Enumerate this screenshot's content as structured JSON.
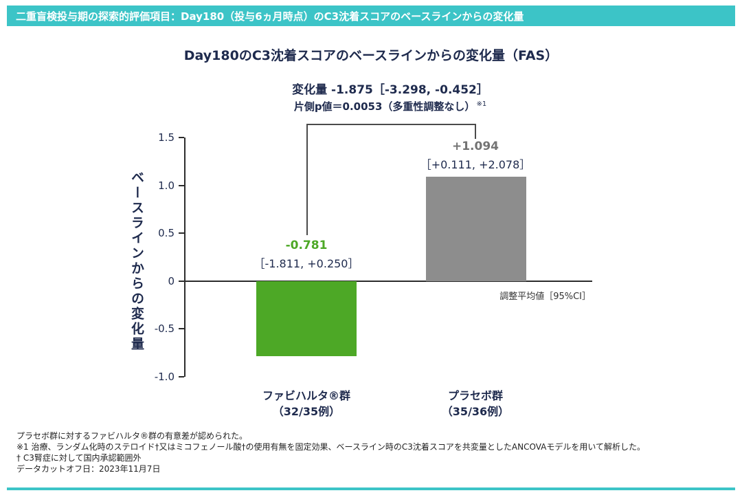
{
  "header": {
    "title": "二重盲検投与期の探索的評価項目：Day180（投与6ヵ月時点）のC3沈着スコアのベースラインからの変化量"
  },
  "chart": {
    "title": "Day180のC3沈着スコアのベースラインからの変化量（FAS）",
    "comparison_line1": "変化量 -1.875［-3.298, -0.452］",
    "comparison_line2": "片側p値＝0.0053（多重性調整なし）",
    "comparison_note_ref": "※1",
    "y_axis_label": "ベースラインからの変化量",
    "axis_note": "調整平均値［95%CI］"
  },
  "groups": [
    {
      "name": "ファビハルタ®群",
      "n_label": "（32/35例）",
      "value_label": "-0.781",
      "ci_label": "［-1.811, +0.250］"
    },
    {
      "name": "プラセボ群",
      "n_label": "（35/36例）",
      "value_label": "+1.094",
      "ci_label": "［+0.111, +2.078］"
    }
  ],
  "chart_data": {
    "type": "bar",
    "title": "Day180のC3沈着スコアのベースラインからの変化量（FAS）",
    "xlabel": "",
    "ylabel": "ベースラインからの変化量",
    "ylim": [
      -1.0,
      1.5
    ],
    "yticks": [
      1.5,
      1.0,
      0.5,
      0,
      -0.5,
      -1.0
    ],
    "grid": false,
    "legend": false,
    "categories": [
      "ファビハルタ®群（32/35例）",
      "プラセボ群（35/36例）"
    ],
    "values": [
      -0.781,
      1.094
    ],
    "ci95": [
      [
        -1.811,
        0.25
      ],
      [
        0.111,
        2.078
      ]
    ],
    "bar_colors": [
      "#4DA826",
      "#8D8D8D"
    ],
    "measure": "調整平均値［95%CI］",
    "comparison": {
      "label": "変化量",
      "difference": -1.875,
      "ci95": [
        -3.298,
        -0.452
      ],
      "p_value_one_sided": 0.0053,
      "p_note": "多重性調整なし"
    }
  },
  "footnotes": [
    "プラセボ群に対するファビハルタ®群の有意差が認められた。",
    "※1 治療、ランダム化時のステロイド†又はミコフェノール酸†の使用有無を固定効果、ベースライン時のC3沈着スコアを共変量としたANCOVAモデルを用いて解析した。",
    "† C3腎症に対して国内承認範囲外",
    "データカットオフ日：2023年11月7日"
  ],
  "colors": {
    "accent_teal": "#3CC4C7",
    "title_navy": "#1E2A4D",
    "green": "#4DA826",
    "gray_bar": "#8D8D8D",
    "gray_text": "#737373"
  }
}
